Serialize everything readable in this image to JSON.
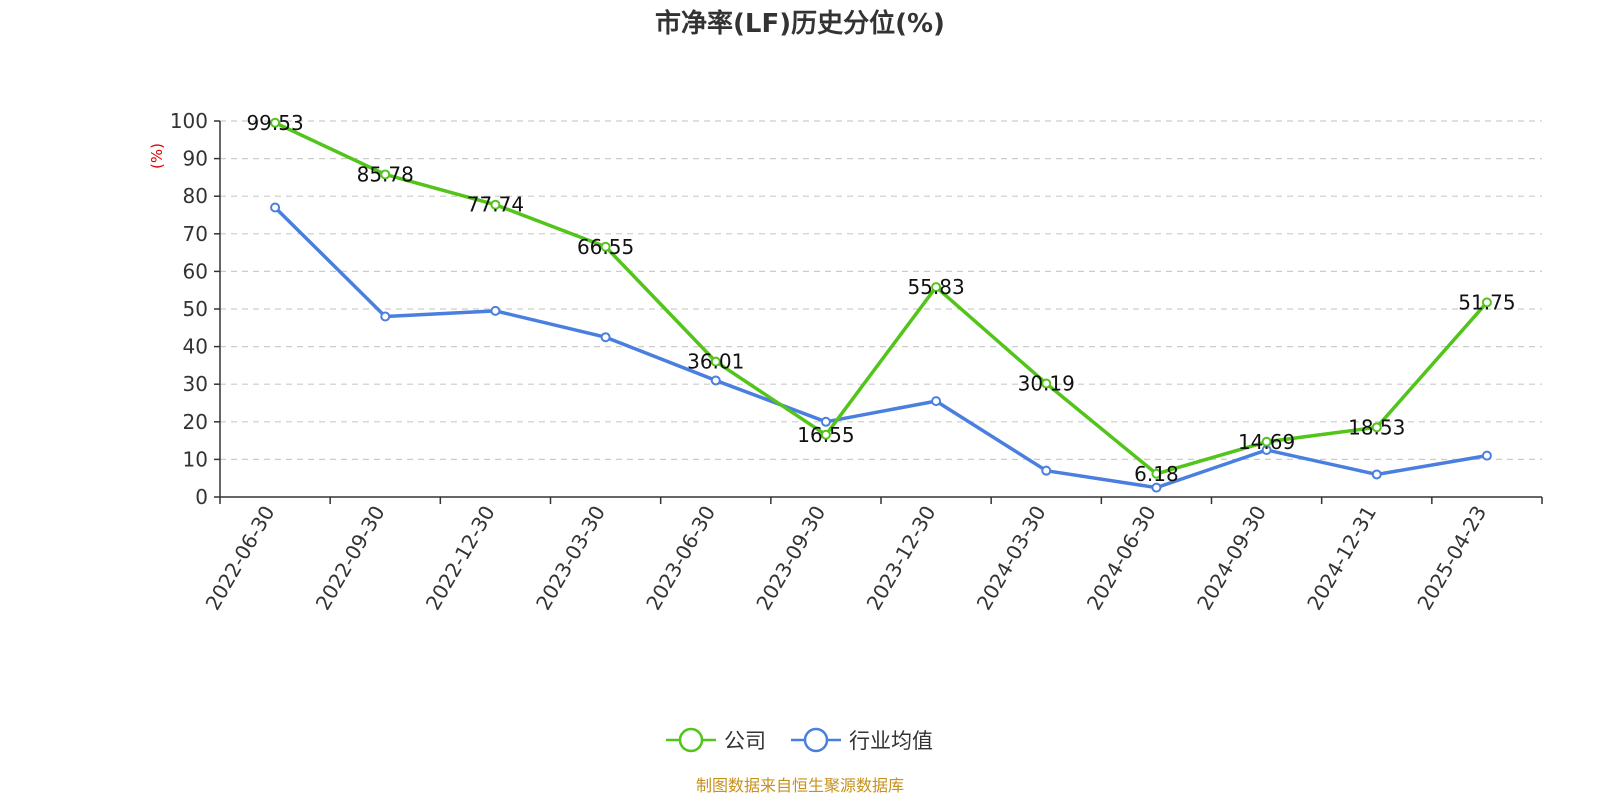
{
  "chart_data": {
    "type": "line",
    "title": "市净率(LF)历史分位(%)",
    "ylabel": "(%)",
    "ylim": [
      0,
      100
    ],
    "yticks": [
      0,
      10,
      20,
      30,
      40,
      50,
      60,
      70,
      80,
      90,
      100
    ],
    "grid": true,
    "legend_position": "bottom-center",
    "categories": [
      "2022-06-30",
      "2022-09-30",
      "2022-12-30",
      "2023-03-30",
      "2023-06-30",
      "2023-09-30",
      "2023-12-30",
      "2024-03-30",
      "2024-06-30",
      "2024-09-30",
      "2024-12-31",
      "2025-04-23"
    ],
    "series": [
      {
        "name": "公司",
        "color": "#52c41a",
        "values": [
          99.53,
          85.78,
          77.74,
          66.55,
          36.01,
          16.55,
          55.83,
          30.19,
          6.18,
          14.69,
          18.53,
          51.75
        ],
        "show_labels": true
      },
      {
        "name": "行业均值",
        "color": "#4a7fdf",
        "values": [
          77,
          48,
          49.5,
          42.5,
          31,
          20,
          25.5,
          7,
          2.5,
          12.5,
          6,
          11
        ],
        "show_labels": false
      }
    ],
    "source": "制图数据来自恒生聚源数据库"
  }
}
